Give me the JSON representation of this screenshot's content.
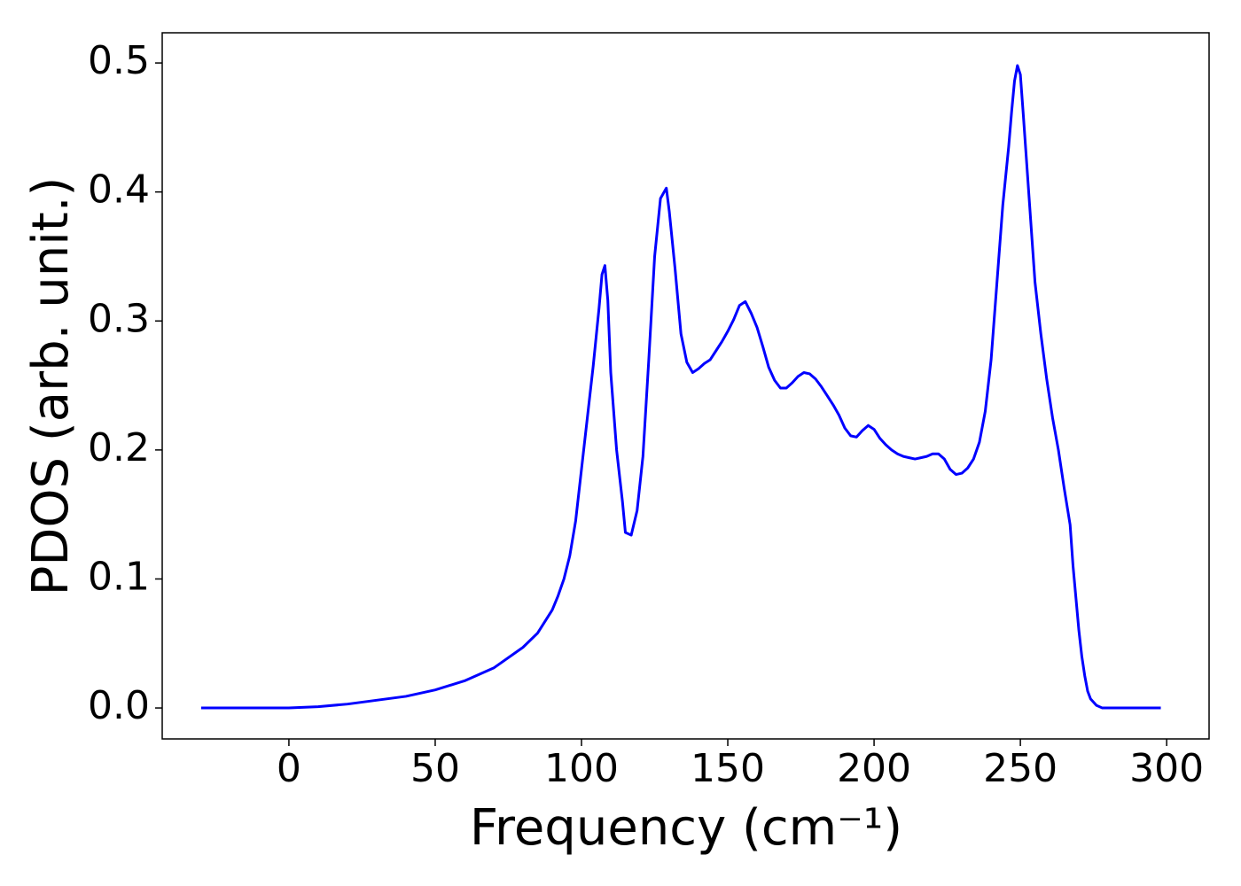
{
  "chart_data": {
    "type": "line",
    "xlabel": "Frequency (cm⁻¹)",
    "ylabel": "PDOS (arb. unit.)",
    "xlim": [
      -43.3,
      314.5
    ],
    "ylim": [
      -0.024,
      0.5234
    ],
    "xticks": [
      0,
      50,
      100,
      150,
      200,
      250,
      300
    ],
    "yticks": [
      {
        "value": 0,
        "label": "0.0"
      },
      0.1,
      0.2,
      0.3,
      0.4,
      0.5
    ],
    "series": [
      {
        "color": "#0000ff",
        "x": [
          -30,
          -20,
          -10,
          0,
          10,
          20,
          30,
          40,
          50,
          60,
          70,
          80,
          85,
          90,
          92,
          94,
          96,
          98,
          100,
          102,
          104,
          106,
          107,
          108,
          109,
          110,
          112,
          114,
          115,
          117,
          119,
          121,
          123,
          125,
          127,
          129,
          130,
          132,
          134,
          136,
          138,
          140,
          142,
          144,
          146,
          148,
          150,
          152,
          154,
          156,
          158,
          160,
          162,
          164,
          166,
          168,
          170,
          172,
          174,
          176,
          178,
          180,
          182,
          184,
          186,
          188,
          190,
          192,
          194,
          196,
          198,
          200,
          202,
          204,
          206,
          208,
          210,
          212,
          214,
          216,
          218,
          220,
          222,
          224,
          226,
          228,
          230,
          232,
          234,
          236,
          238,
          240,
          242,
          244,
          246,
          247,
          248,
          249,
          250,
          251,
          253,
          255,
          257,
          259,
          261,
          263,
          265,
          267,
          268,
          269,
          270,
          271,
          272,
          273,
          274,
          276,
          278,
          288,
          298
        ],
        "values": [
          0,
          0,
          0,
          0,
          0.001,
          0.003,
          0.006,
          0.009,
          0.014,
          0.021,
          0.031,
          0.047,
          0.058,
          0.076,
          0.087,
          0.1,
          0.118,
          0.145,
          0.185,
          0.225,
          0.265,
          0.31,
          0.336,
          0.343,
          0.316,
          0.26,
          0.2,
          0.16,
          0.136,
          0.134,
          0.153,
          0.195,
          0.27,
          0.35,
          0.395,
          0.403,
          0.385,
          0.34,
          0.29,
          0.268,
          0.26,
          0.263,
          0.267,
          0.27,
          0.277,
          0.284,
          0.292,
          0.301,
          0.312,
          0.315,
          0.306,
          0.295,
          0.28,
          0.264,
          0.254,
          0.248,
          0.248,
          0.252,
          0.257,
          0.26,
          0.259,
          0.255,
          0.249,
          0.242,
          0.235,
          0.227,
          0.217,
          0.211,
          0.21,
          0.215,
          0.219,
          0.216,
          0.209,
          0.204,
          0.2,
          0.197,
          0.195,
          0.194,
          0.193,
          0.194,
          0.195,
          0.197,
          0.197,
          0.193,
          0.185,
          0.181,
          0.182,
          0.186,
          0.193,
          0.206,
          0.23,
          0.27,
          0.33,
          0.39,
          0.435,
          0.462,
          0.486,
          0.498,
          0.491,
          0.46,
          0.395,
          0.33,
          0.29,
          0.255,
          0.225,
          0.2,
          0.17,
          0.142,
          0.11,
          0.085,
          0.06,
          0.04,
          0.025,
          0.013,
          0.007,
          0.002,
          0,
          0,
          0
        ]
      }
    ]
  }
}
